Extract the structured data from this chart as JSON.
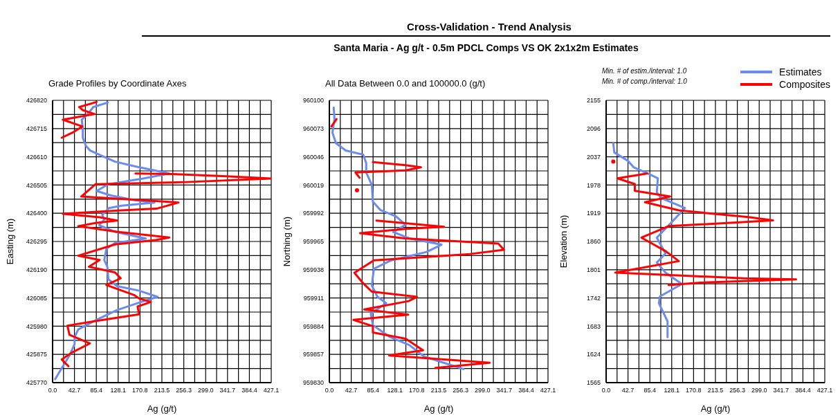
{
  "chart_data": [
    {
      "type": "line",
      "annotations": [
        "Grade Profiles by Coordinate Axes"
      ],
      "xlabel": "Ag (g/t)",
      "ylabel": "Easting (m)",
      "grid": true,
      "xlim": [
        0,
        427.1
      ],
      "xticks": [
        {
          "value": 0,
          "label": "0.0"
        },
        {
          "value": 21.35,
          "label": null
        },
        {
          "value": 42.7,
          "label": "42.7"
        },
        {
          "value": 64.05,
          "label": null
        },
        {
          "value": 85.4,
          "label": "85.4"
        },
        {
          "value": 106.75,
          "label": null
        },
        {
          "value": 128.1,
          "label": "128.1"
        },
        {
          "value": 149.45,
          "label": null
        },
        {
          "value": 170.8,
          "label": "170.8"
        },
        {
          "value": 192.15,
          "label": null
        },
        {
          "value": 213.5,
          "label": "213.5"
        },
        {
          "value": 234.9,
          "label": null
        },
        {
          "value": 256.3,
          "label": "256.3"
        },
        {
          "value": 277.65,
          "label": null
        },
        {
          "value": 299,
          "label": "299.0"
        },
        {
          "value": 320.35,
          "label": null
        },
        {
          "value": 341.7,
          "label": "341.7"
        },
        {
          "value": 363.05,
          "label": null
        },
        {
          "value": 384.4,
          "label": "384.4"
        },
        {
          "value": 405.75,
          "label": null
        },
        {
          "value": 427.1,
          "label": "427.1"
        }
      ],
      "ylim": [
        425770,
        426820
      ],
      "yticks": [
        425770,
        {
          "value": 425822.5,
          "label": null
        },
        425875,
        {
          "value": 425927.5,
          "label": null
        },
        425980,
        {
          "value": 426032.5,
          "label": null
        },
        426085,
        {
          "value": 426137.5,
          "label": null
        },
        426190,
        {
          "value": 426242.5,
          "label": null
        },
        426295,
        {
          "value": 426347.5,
          "label": null
        },
        426400,
        {
          "value": 426452.5,
          "label": null
        },
        426505,
        {
          "value": 426557.5,
          "label": null
        },
        426610,
        {
          "value": 426662.5,
          "label": null
        },
        426715,
        {
          "value": 426767.5,
          "label": null
        },
        426820
      ],
      "series": [
        {
          "color": "#6a8cf0",
          "x": [
            108,
            79.5,
            71,
            57,
            59,
            59,
            65,
            73,
            92,
            122,
            160,
            228,
            177,
            109,
            86,
            114,
            160,
            199,
            135,
            110,
            97,
            101,
            91,
            122,
            182,
            122,
            105,
            101,
            107,
            109,
            126,
            169,
            205,
            173,
            126,
            84,
            50,
            43,
            43,
            33,
            22,
            5
          ],
          "values": [
            426812,
            426795,
            426774,
            426748,
            426715,
            426681,
            426651,
            426634,
            426617,
            426592,
            426575,
            426548,
            426529,
            426508,
            426483,
            426466,
            426449,
            426440,
            426428,
            426419,
            426394,
            426377,
            426356,
            426331,
            426306,
            426289,
            426268,
            426226,
            426201,
            426154,
            426129,
            426112,
            426089,
            426070,
            426040,
            426002,
            425968,
            425939,
            425913,
            425871,
            425837,
            425783
          ]
        },
        {
          "color": "#ff0000",
          "x": [
            86,
            52,
            58.5,
            82,
            20,
            58,
            41,
            18,
            null,
            162,
            233,
            347,
            427,
            262,
            84,
            56,
            135,
            246,
            203,
            128,
            20,
            92,
            126,
            84,
            50,
            126,
            228,
            203,
            122,
            50,
            92,
            71,
            122,
            133,
            105,
            160,
            169,
            192,
            166,
            169,
            84,
            29,
            33,
            73,
            37,
            18,
            31
          ],
          "values": [
            426814,
            426795,
            426784,
            426769,
            426748,
            426723,
            426702,
            426681,
            null,
            426548,
            426546,
            426537,
            426529,
            426516,
            426508,
            426462,
            426453,
            426440,
            426417,
            426410,
            426398,
            426385,
            426373,
            426364,
            426352,
            426331,
            426310,
            426301,
            426284,
            426242,
            426226,
            426201,
            426180,
            426158,
            426133,
            426095,
            426083,
            426070,
            426053,
            426024,
            425999,
            425982,
            425948,
            425916,
            425881,
            425856,
            425831
          ]
        }
      ]
    },
    {
      "type": "line",
      "title": "Cross-Validation - Trend Analysis",
      "subtitle": "Santa Maria - Ag g/t - 0.5m PDCL Comps VS OK 2x1x2m Estimates",
      "annotations": [
        "All Data Between 0.0 and 100000.0 (g/t)"
      ],
      "xlabel": "Ag (g/t)",
      "ylabel": "Northing (m)",
      "grid": true,
      "xlim": [
        0,
        427.1
      ],
      "xticks": [
        {
          "value": 0,
          "label": "0.0"
        },
        {
          "value": 21.35,
          "label": null
        },
        {
          "value": 42.7,
          "label": "42.7"
        },
        {
          "value": 64.05,
          "label": null
        },
        {
          "value": 85.4,
          "label": "85.4"
        },
        {
          "value": 106.75,
          "label": null
        },
        {
          "value": 128.1,
          "label": "128.1"
        },
        {
          "value": 149.45,
          "label": null
        },
        {
          "value": 170.8,
          "label": "170.8"
        },
        {
          "value": 192.15,
          "label": null
        },
        {
          "value": 213.5,
          "label": "213.5"
        },
        {
          "value": 234.9,
          "label": null
        },
        {
          "value": 256.3,
          "label": "256.3"
        },
        {
          "value": 277.65,
          "label": null
        },
        {
          "value": 299,
          "label": "299.0"
        },
        {
          "value": 320.35,
          "label": null
        },
        {
          "value": 341.7,
          "label": "341.7"
        },
        {
          "value": 363.05,
          "label": null
        },
        {
          "value": 384.4,
          "label": "384.4"
        },
        {
          "value": 405.75,
          "label": null
        },
        {
          "value": 427.1,
          "label": "427.1"
        }
      ],
      "ylim": [
        959830,
        960100
      ],
      "yticks": [
        959830,
        {
          "value": 959843.5,
          "label": null
        },
        959857,
        {
          "value": 959870.5,
          "label": null
        },
        959884,
        {
          "value": 959897.5,
          "label": null
        },
        959911,
        {
          "value": 959924.5,
          "label": null
        },
        959938,
        {
          "value": 959951.5,
          "label": null
        },
        959965,
        {
          "value": 959978.5,
          "label": null
        },
        959992,
        {
          "value": 960005.5,
          "label": null
        },
        960019,
        {
          "value": 960032.5,
          "label": null
        },
        960046,
        {
          "value": 960059.5,
          "label": null
        },
        960073,
        {
          "value": 960086.5,
          "label": null
        },
        960100
      ],
      "series": [
        {
          "color": "#6a8cf0",
          "x": [
            8.5,
            10,
            6,
            13,
            32,
            66,
            72,
            72,
            83,
            85,
            100,
            130,
            149,
            125,
            156,
            219,
            190,
            121,
            87,
            83,
            94,
            111,
            81,
            85,
            117,
            156,
            185,
            262
          ],
          "values": [
            960093,
            960082,
            960069,
            960059,
            960052,
            960048,
            960040,
            960031,
            960019,
            960003,
            959995,
            959989,
            959981,
            959974,
            959968,
            959962,
            959955,
            959947,
            959939,
            959923,
            959912,
            959906,
            959896,
            959885,
            959874,
            959866,
            959855,
            959843
          ]
        },
        {
          "color": "#ff0000",
          "x": [
            14,
            4,
            null,
            85,
            149,
            179,
            149,
            51,
            59,
            null,
            92,
            224,
            149,
            60,
            147,
            330,
            341,
            275,
            87,
            49,
            66,
            83,
            171,
            155,
            68,
            154,
            47,
            85,
            85,
            149,
            183,
            117,
            313,
            207
          ],
          "values": [
            960082,
            960075,
            null,
            960041,
            960038,
            960036,
            960033,
            960031,
            960026,
            null,
            959985,
            959979,
            959977,
            959973,
            959968,
            959963,
            959957,
            959953,
            959947,
            959935,
            959925,
            959917,
            959912,
            959908,
            959900,
            959895,
            959890,
            959884,
            959878,
            959872,
            959861,
            959856,
            959849,
            959844
          ]
        },
        {
          "type": "scatter",
          "color": "#ff0000",
          "x": [
            54
          ],
          "values": [
            960014
          ]
        }
      ]
    },
    {
      "type": "line",
      "annotations": [
        "Min. # of estim./interval: 1.0",
        "Min. # of comp./interval: 1.0"
      ],
      "xlabel": "Ag (g/t)",
      "ylabel": "Elevation (m)",
      "grid": true,
      "legend": "top right",
      "xlim": [
        0,
        427.1
      ],
      "xticks": [
        {
          "value": 0,
          "label": "0.0"
        },
        {
          "value": 21.35,
          "label": null
        },
        {
          "value": 42.7,
          "label": "42.7"
        },
        {
          "value": 64.05,
          "label": null
        },
        {
          "value": 85.4,
          "label": "85.4"
        },
        {
          "value": 106.75,
          "label": null
        },
        {
          "value": 128.1,
          "label": "128.1"
        },
        {
          "value": 149.45,
          "label": null
        },
        {
          "value": 170.8,
          "label": "170.8"
        },
        {
          "value": 192.15,
          "label": null
        },
        {
          "value": 213.5,
          "label": "213.5"
        },
        {
          "value": 234.9,
          "label": null
        },
        {
          "value": 256.3,
          "label": "256.3"
        },
        {
          "value": 277.65,
          "label": null
        },
        {
          "value": 299,
          "label": "299.0"
        },
        {
          "value": 320.35,
          "label": null
        },
        {
          "value": 341.7,
          "label": "341.7"
        },
        {
          "value": 363.05,
          "label": null
        },
        {
          "value": 384.4,
          "label": "384.4"
        },
        {
          "value": 405.75,
          "label": null
        },
        {
          "value": 427.1,
          "label": "427.1"
        }
      ],
      "ylim": [
        1565,
        2155
      ],
      "yticks": [
        1565,
        {
          "value": 1594.5,
          "label": null
        },
        1624,
        {
          "value": 1653.5,
          "label": null
        },
        1683,
        {
          "value": 1712.5,
          "label": null
        },
        1742,
        {
          "value": 1771.5,
          "label": null
        },
        1801,
        {
          "value": 1830.5,
          "label": null
        },
        1860,
        {
          "value": 1889.5,
          "label": null
        },
        1919,
        {
          "value": 1948.5,
          "label": null
        },
        1978,
        {
          "value": 2007.5,
          "label": null
        },
        2037,
        {
          "value": 2066.5,
          "label": null
        },
        2096,
        {
          "value": 2125.5,
          "label": null
        },
        2155
      ],
      "series": [
        {
          "name": "Estimates",
          "color": "#6a8cf0",
          "x": [
            14,
            16,
            42,
            54,
            80,
            101,
            99,
            107,
            154,
            133,
            99,
            116,
            99,
            116,
            148,
            105,
            103,
            120,
            120
          ],
          "values": [
            2065,
            2046,
            2029,
            2015,
            2003,
            1992,
            1963,
            1951,
            1930,
            1906,
            1868,
            1835,
            1816,
            1795,
            1771,
            1745,
            1731,
            1693,
            1660
          ]
        },
        {
          "type": "scatter",
          "color": "#ff0000",
          "x": [
            14
          ],
          "values": [
            2027
          ]
        },
        {
          "name": "Composites",
          "color": "#ff0000",
          "x": [
            80,
            22,
            56,
            56,
            125,
            76,
            142,
            278,
            326,
            122,
            69,
            116,
            142,
            18,
            269,
            371,
            184,
            122
          ],
          "values": [
            2002,
            1992,
            1980,
            1966,
            1954,
            1942,
            1925,
            1911,
            1904,
            1892,
            1868,
            1840,
            1819,
            1795,
            1783,
            1781,
            1774,
            1769
          ]
        }
      ]
    }
  ]
}
